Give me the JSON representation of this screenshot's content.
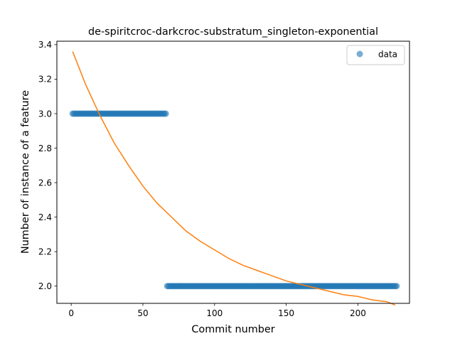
{
  "chart_data": {
    "type": "scatter",
    "title": "de-spiritcroc-darkcroc-substratum_singleton-exponential",
    "xlabel": "Commit number",
    "ylabel": "Number of instance of a feature",
    "xlim": [
      -10,
      236
    ],
    "ylim": [
      1.9,
      3.42
    ],
    "xticks": [
      0,
      50,
      100,
      150,
      200
    ],
    "yticks": [
      2.0,
      2.2,
      2.4,
      2.6,
      2.8,
      3.0,
      3.2,
      3.4
    ],
    "xtick_labels": [
      "0",
      "50",
      "100",
      "150",
      "200"
    ],
    "ytick_labels": [
      "2.0",
      "2.2",
      "2.4",
      "2.6",
      "2.8",
      "3.0",
      "3.2",
      "3.4"
    ],
    "legend": {
      "position": "top-right",
      "entries": [
        "data"
      ]
    },
    "grid": false,
    "series": [
      {
        "name": "data",
        "kind": "scatter",
        "color": "#1f77b4",
        "segments": [
          {
            "x_start": 1,
            "x_end": 66,
            "y": 3
          },
          {
            "x_start": 67,
            "x_end": 227,
            "y": 2
          }
        ]
      },
      {
        "kind": "line",
        "color": "#ff7f0e",
        "x": [
          1,
          10,
          20,
          30,
          40,
          50,
          60,
          70,
          80,
          90,
          100,
          110,
          120,
          130,
          140,
          150,
          160,
          170,
          180,
          190,
          200,
          210,
          220,
          226
        ],
        "y": [
          3.36,
          3.17,
          2.99,
          2.83,
          2.7,
          2.58,
          2.48,
          2.4,
          2.32,
          2.26,
          2.21,
          2.16,
          2.12,
          2.09,
          2.06,
          2.03,
          2.01,
          1.99,
          1.97,
          1.95,
          1.94,
          1.92,
          1.91,
          1.89
        ]
      }
    ]
  }
}
